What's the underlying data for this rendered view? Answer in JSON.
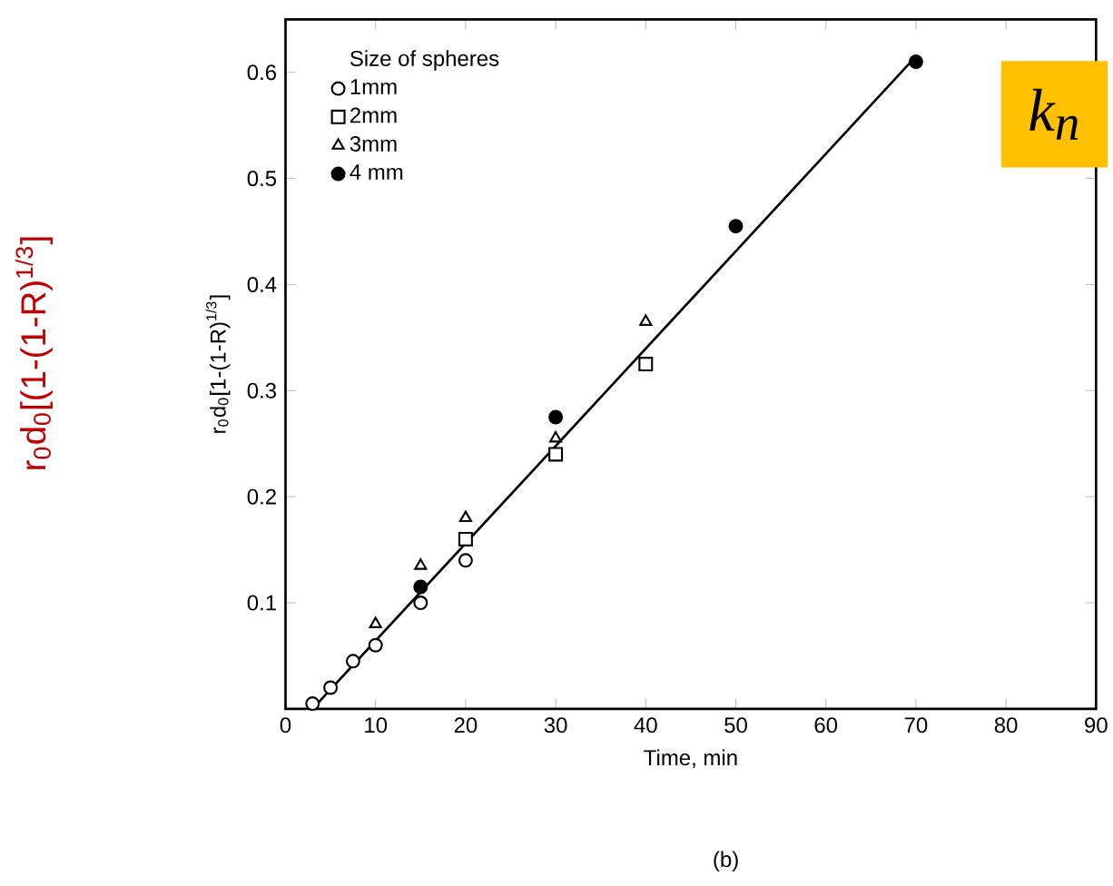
{
  "chart_data": {
    "type": "scatter",
    "xlabel": "Time, min",
    "ylabel": "r$_{0}$d$_{0}$[1-(1-R)$^{1/3}$]",
    "legend_title": "Size of spheres",
    "annotations": [
      "r$_{0}$d$_{0}$[(1-(1-R)$^{1/3}$]",
      "k$_{n}$",
      "(b)"
    ],
    "xlim": [
      0,
      90
    ],
    "ylim": [
      0,
      0.65
    ],
    "xticks": [
      0,
      10,
      20,
      30,
      40,
      50,
      60,
      70,
      80,
      90
    ],
    "yticks": [
      0.1,
      0.2,
      0.3,
      0.4,
      0.5,
      0.6
    ],
    "legend": "top left",
    "grid": false,
    "series": [
      {
        "name": "1mm",
        "color": "#000000",
        "marker": "circle",
        "x": [
          3,
          5,
          7.5,
          10,
          15,
          20
        ],
        "values": [
          0.005,
          0.02,
          0.045,
          0.06,
          0.1,
          0.14
        ]
      },
      {
        "name": "2mm",
        "color": "#000000",
        "marker": "square",
        "x": [
          20,
          30,
          40
        ],
        "values": [
          0.16,
          0.24,
          0.325
        ]
      },
      {
        "name": "3mm",
        "color": "#000000",
        "marker": "triangle",
        "x": [
          10,
          15,
          20,
          30,
          40
        ],
        "values": [
          0.08,
          0.135,
          0.18,
          0.255,
          0.365
        ]
      },
      {
        "name": "4 mm",
        "color": "#000000",
        "marker": "circle",
        "x": [
          15,
          30,
          50,
          70
        ],
        "values": [
          0.115,
          0.275,
          0.455,
          0.61
        ]
      },
      {
        "type": "line",
        "color": "#000000",
        "marker": "none",
        "line_style": "solid",
        "x": [
          3,
          70
        ],
        "values": [
          0,
          0.615
        ]
      }
    ]
  }
}
